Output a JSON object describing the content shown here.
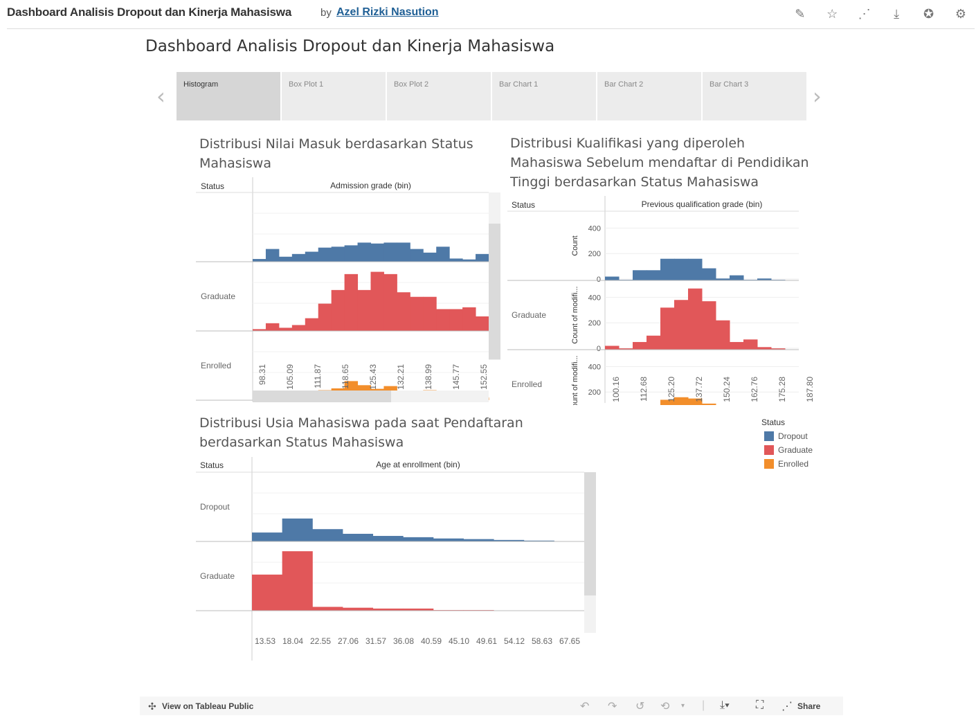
{
  "header": {
    "title": "Dashboard Analisis Dropout dan Kinerja Mahasiswa",
    "by": "by",
    "author": "Azel Rizki Nasution",
    "tools": [
      "edit-icon",
      "star-icon",
      "share-network-icon",
      "download-icon",
      "badge-icon",
      "settings-icon"
    ]
  },
  "dashboard_title": "Dashboard Analisis Dropout dan Kinerja Mahasiswa",
  "tabs": [
    {
      "label": "Histogram",
      "active": true
    },
    {
      "label": "Box Plot 1",
      "active": false
    },
    {
      "label": "Box Plot 2",
      "active": false
    },
    {
      "label": "Bar Chart 1",
      "active": false
    },
    {
      "label": "Bar Chart 2",
      "active": false
    },
    {
      "label": "Bar Chart 3",
      "active": false
    }
  ],
  "nav": {
    "prev": "‹",
    "next": "›"
  },
  "colors": {
    "Dropout": "#4e79a7",
    "Graduate": "#e15759",
    "Enrolled": "#f28e2b"
  },
  "legend": {
    "title": "Status",
    "items": [
      {
        "label": "Dropout"
      },
      {
        "label": "Graduate"
      },
      {
        "label": "Enrolled"
      }
    ]
  },
  "footer": {
    "view_label": "View on Tableau Public",
    "share_label": "Share"
  },
  "chart_data": [
    {
      "type": "bar",
      "title": "Distribusi Nilai Masuk berdasarkan Status Mahasiswa",
      "row_header": "Status",
      "xlabel": "Admission grade (bin)",
      "row_labels": [
        "",
        "Graduate",
        "Enrolled"
      ],
      "tick_labels": [
        "98.31",
        "105.09",
        "111.87",
        "118.65",
        "125.43",
        "132.21",
        "138.99",
        "145.77",
        "152.55"
      ],
      "series": [
        {
          "name": "Dropout",
          "values": [
            6,
            28,
            11,
            17,
            22,
            31,
            33,
            36,
            42,
            40,
            42,
            42,
            28,
            20,
            33,
            7,
            5,
            17
          ]
        },
        {
          "name": "Graduate",
          "values": [
            4,
            17,
            7,
            13,
            28,
            60,
            90,
            125,
            90,
            130,
            125,
            85,
            75,
            75,
            48,
            48,
            52,
            32
          ]
        },
        {
          "name": "Enrolled",
          "values": [
            2,
            10,
            3,
            10,
            17,
            22,
            26,
            42,
            33,
            25,
            31,
            20,
            16,
            22,
            4,
            6,
            5,
            6
          ]
        }
      ]
    },
    {
      "type": "bar",
      "title": "Distribusi Kualifikasi yang diperoleh Mahasiswa Sebelum mendaftar di Pendidikan Tinggi berdasarkan Status Mahasiswa",
      "row_header": "Status",
      "xlabel": "Previous qualification grade (bin)",
      "ylabel": "Count of modifi...",
      "y_ticks": [
        0,
        200,
        400
      ],
      "row_labels": [
        "",
        "Graduate",
        "Enrolled"
      ],
      "tick_labels": [
        "100.16",
        "112.68",
        "125.20",
        "137.72",
        "150.24",
        "162.76",
        "175.28",
        "187.80"
      ],
      "series": [
        {
          "name": "Dropout",
          "values": [
            30,
            5,
            80,
            80,
            170,
            170,
            170,
            95,
            15,
            40,
            5,
            15,
            5,
            0
          ]
        },
        {
          "name": "Graduate",
          "values": [
            30,
            10,
            60,
            110,
            330,
            390,
            480,
            380,
            230,
            60,
            80,
            20,
            10,
            0
          ]
        },
        {
          "name": "Enrolled",
          "values": [
            15,
            5,
            20,
            40,
            150,
            170,
            160,
            120,
            60,
            20,
            5,
            5,
            0,
            0
          ]
        }
      ]
    },
    {
      "type": "bar",
      "title": "Distribusi Usia Mahasiswa pada saat Pendaftaran berdasarkan Status Mahasiswa",
      "row_header": "Status",
      "xlabel": "Age at enrollment (bin)",
      "row_labels": [
        "Dropout",
        "Graduate"
      ],
      "tick_labels": [
        "13.53",
        "18.04",
        "22.55",
        "27.06",
        "31.57",
        "36.08",
        "40.59",
        "45.10",
        "49.61",
        "54.12",
        "58.63",
        "67.65"
      ],
      "series": [
        {
          "name": "Dropout",
          "values": [
            210,
            540,
            290,
            180,
            130,
            100,
            70,
            55,
            35,
            20,
            0
          ]
        },
        {
          "name": "Graduate",
          "values": [
            850,
            1400,
            90,
            70,
            50,
            50,
            15,
            15,
            5,
            0,
            0
          ]
        }
      ]
    }
  ]
}
